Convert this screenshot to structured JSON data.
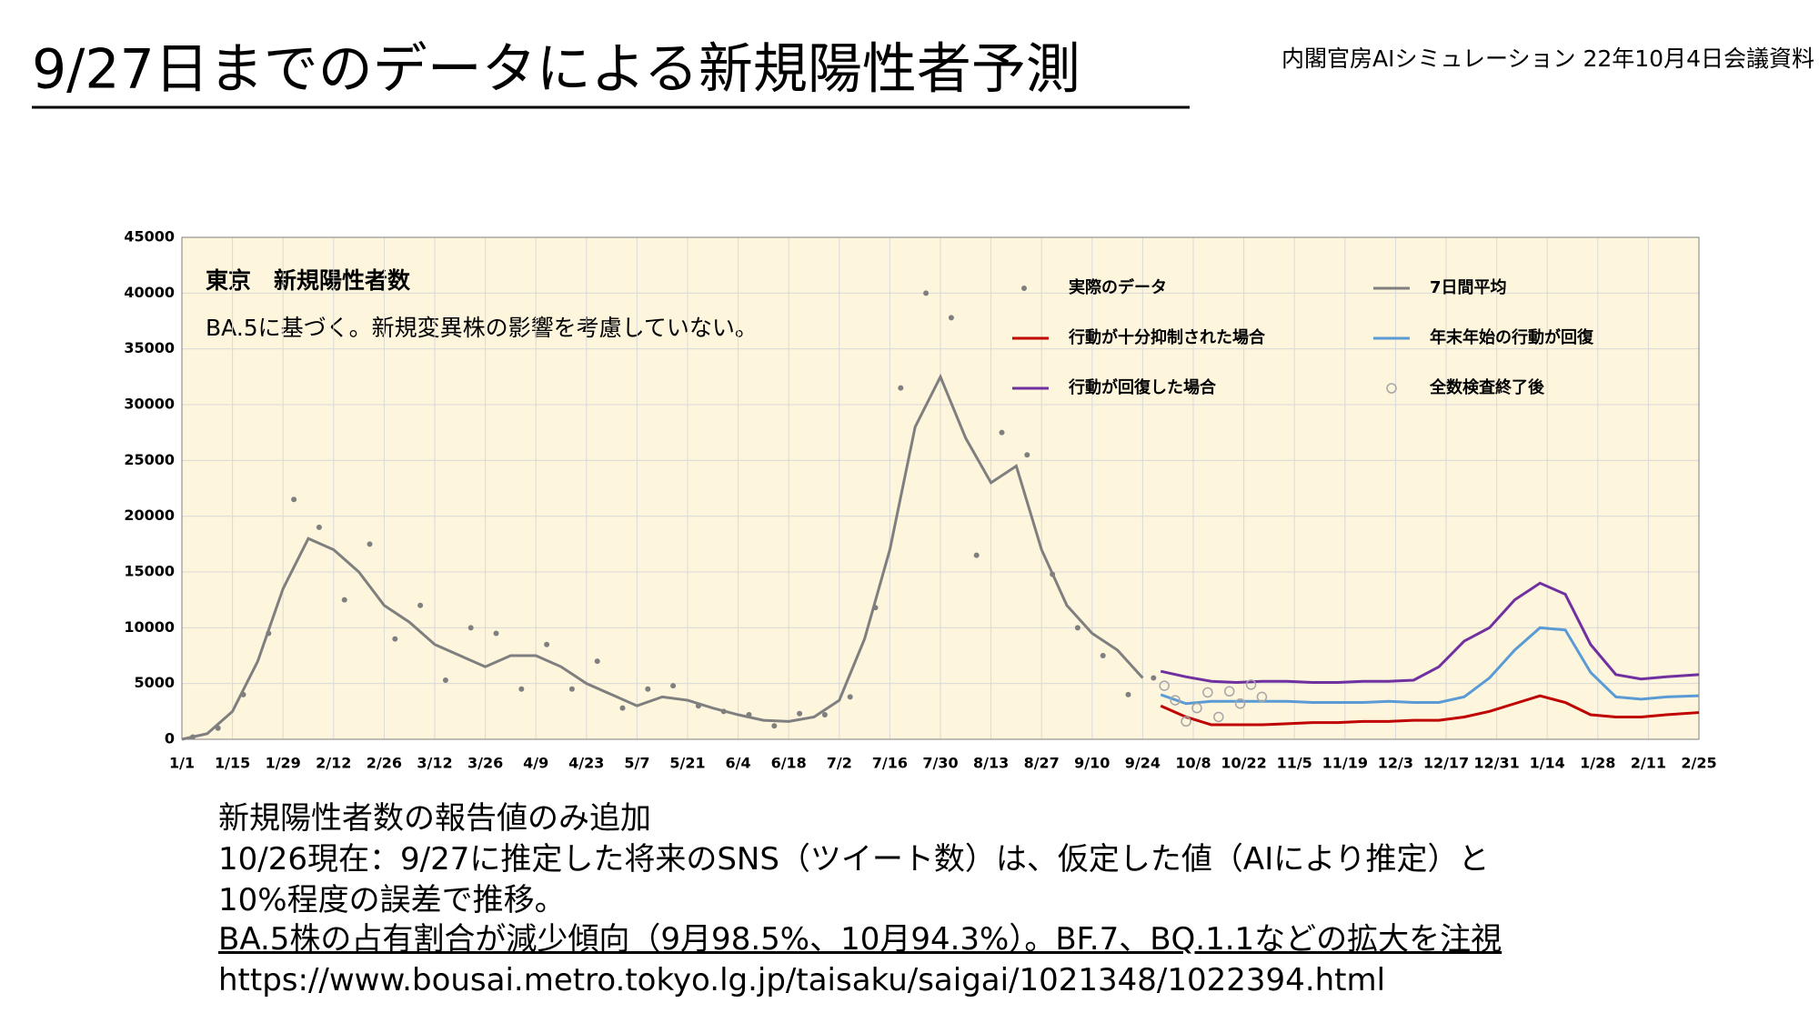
{
  "title": "9/27日までのデータによる新規陽性者予測",
  "source": "内閣官房AIシミュレーション 22年10月4日会議資料",
  "notes": [
    "新規陽性者数の報告値のみ追加",
    "10/26現在：9/27に推定した将来のSNS（ツイート数）は、仮定した値（AIにより推定）と",
    "10%程度の誤差で推移。",
    "BA.5株の占有割合が減少傾向（9月98.5%、10月94.3%）。BF.7、BQ.1.1などの拡大を注視",
    "https://www.bousai.metro.tokyo.lg.jp/taisaku/saigai/1021348/1022394.html"
  ],
  "chart_data": {
    "type": "line",
    "annotations": [
      "東京　新規陽性者数",
      "BA.5に基づく。新規変異株の影響を考慮していない。"
    ],
    "xlim": [
      0,
      420
    ],
    "xticks": [
      {
        "value": 0,
        "label": "1/1"
      },
      {
        "value": 14,
        "label": "1/15"
      },
      {
        "value": 28,
        "label": "1/29"
      },
      {
        "value": 42,
        "label": "2/12"
      },
      {
        "value": 56,
        "label": "2/26"
      },
      {
        "value": 70,
        "label": "3/12"
      },
      {
        "value": 84,
        "label": "3/26"
      },
      {
        "value": 98,
        "label": "4/9"
      },
      {
        "value": 112,
        "label": "4/23"
      },
      {
        "value": 126,
        "label": "5/7"
      },
      {
        "value": 140,
        "label": "5/21"
      },
      {
        "value": 154,
        "label": "6/4"
      },
      {
        "value": 168,
        "label": "6/18"
      },
      {
        "value": 182,
        "label": "7/2"
      },
      {
        "value": 196,
        "label": "7/16"
      },
      {
        "value": 210,
        "label": "7/30"
      },
      {
        "value": 224,
        "label": "8/13"
      },
      {
        "value": 238,
        "label": "8/27"
      },
      {
        "value": 252,
        "label": "9/10"
      },
      {
        "value": 266,
        "label": "9/24"
      },
      {
        "value": 280,
        "label": "10/8"
      },
      {
        "value": 294,
        "label": "10/22"
      },
      {
        "value": 308,
        "label": "11/5"
      },
      {
        "value": 322,
        "label": "11/19"
      },
      {
        "value": 336,
        "label": "12/3"
      },
      {
        "value": 350,
        "label": "12/17"
      },
      {
        "value": 364,
        "label": "12/31"
      },
      {
        "value": 378,
        "label": "1/14"
      },
      {
        "value": 392,
        "label": "1/28"
      },
      {
        "value": 406,
        "label": "2/11"
      },
      {
        "value": 420,
        "label": "2/25"
      }
    ],
    "ylim": [
      0,
      45000
    ],
    "yticks": [
      0,
      5000,
      10000,
      15000,
      20000,
      25000,
      30000,
      35000,
      40000,
      45000
    ],
    "grid": true,
    "series": [
      {
        "name": "実際のデータ",
        "color": "#7f7f7f",
        "style": "dots",
        "x": [
          3,
          10,
          17,
          24,
          31,
          38,
          45,
          52,
          59,
          66,
          73,
          80,
          87,
          94,
          101,
          108,
          115,
          122,
          129,
          136,
          143,
          150,
          157,
          164,
          171,
          178,
          185,
          192,
          199,
          206,
          213,
          220,
          227,
          234,
          241,
          248,
          255,
          262,
          269
        ],
        "values": [
          200,
          1000,
          4000,
          9500,
          21500,
          19000,
          12500,
          17500,
          9000,
          12000,
          5300,
          10000,
          9500,
          4500,
          8500,
          4500,
          7000,
          2800,
          4500,
          4800,
          3000,
          2500,
          2200,
          1200,
          2300,
          2200,
          3800,
          11800,
          31500,
          40000,
          37800,
          16500,
          27500,
          25500,
          14800,
          10000,
          7500,
          4000,
          5500
        ]
      },
      {
        "name": "7日間平均",
        "color": "#7f7f7f",
        "style": "line",
        "x": [
          0,
          7,
          14,
          21,
          28,
          35,
          42,
          49,
          56,
          63,
          70,
          77,
          84,
          91,
          98,
          105,
          112,
          119,
          126,
          133,
          140,
          147,
          154,
          161,
          168,
          175,
          182,
          189,
          196,
          203,
          210,
          217,
          224,
          231,
          238,
          245,
          252,
          259,
          266
        ],
        "values": [
          0,
          500,
          2500,
          7000,
          13500,
          18000,
          17000,
          15000,
          12000,
          10500,
          8500,
          7500,
          6500,
          7500,
          7500,
          6500,
          5000,
          4000,
          3000,
          3800,
          3500,
          2800,
          2200,
          1700,
          1600,
          2000,
          3500,
          9000,
          17000,
          28000,
          32500,
          27000,
          23000,
          24500,
          17000,
          12000,
          9500,
          8000,
          5500
        ]
      },
      {
        "name": "行動が十分抑制された場合",
        "color": "#c00000",
        "style": "line",
        "x": [
          271,
          278,
          285,
          292,
          299,
          306,
          313,
          320,
          327,
          334,
          341,
          348,
          355,
          362,
          369,
          376,
          383,
          390,
          397,
          404,
          411,
          420
        ],
        "values": [
          3000,
          2000,
          1300,
          1300,
          1300,
          1400,
          1500,
          1500,
          1600,
          1600,
          1700,
          1700,
          2000,
          2500,
          3200,
          3900,
          3300,
          2200,
          2000,
          2000,
          2200,
          2400
        ]
      },
      {
        "name": "年末年始の行動が回復",
        "color": "#5b9bd5",
        "style": "line",
        "x": [
          271,
          278,
          285,
          292,
          299,
          306,
          313,
          320,
          327,
          334,
          341,
          348,
          355,
          362,
          369,
          376,
          383,
          390,
          397,
          404,
          411,
          420
        ],
        "values": [
          4000,
          3200,
          3400,
          3400,
          3400,
          3400,
          3300,
          3300,
          3300,
          3400,
          3300,
          3300,
          3800,
          5500,
          8000,
          10000,
          9800,
          6000,
          3800,
          3600,
          3800,
          3900
        ]
      },
      {
        "name": "行動が回復した場合",
        "color": "#7030a0",
        "style": "line",
        "x": [
          271,
          278,
          285,
          292,
          299,
          306,
          313,
          320,
          327,
          334,
          341,
          348,
          355,
          362,
          369,
          376,
          383,
          390,
          397,
          404,
          411,
          420
        ],
        "values": [
          6100,
          5600,
          5200,
          5100,
          5200,
          5200,
          5100,
          5100,
          5200,
          5200,
          5300,
          6500,
          8800,
          10000,
          12500,
          14000,
          13000,
          8500,
          5800,
          5400,
          5600,
          5800
        ]
      },
      {
        "name": "全数検査終了後",
        "color": "#a6a6a6",
        "style": "hollow",
        "x": [
          272,
          275,
          278,
          281,
          284,
          287,
          290,
          293,
          296,
          299
        ],
        "values": [
          4800,
          3500,
          1600,
          2800,
          4200,
          2000,
          4300,
          3200,
          4900,
          3800
        ]
      }
    ]
  }
}
